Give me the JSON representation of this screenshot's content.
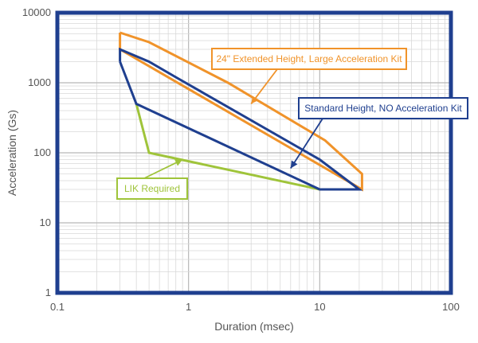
{
  "chart_data": {
    "type": "line",
    "xlabel": "Duration (msec)",
    "ylabel": "Acceleration (Gs)",
    "xscale": "log",
    "yscale": "log",
    "xlim": [
      0.1,
      100
    ],
    "ylim": [
      1,
      10000
    ],
    "grid": true,
    "x_ticks": [
      {
        "value": 0.1,
        "label": "0.1"
      },
      {
        "value": 1,
        "label": "1"
      },
      {
        "value": 10,
        "label": "10"
      },
      {
        "value": 100,
        "label": "100"
      }
    ],
    "y_ticks": [
      {
        "value": 1,
        "label": "1"
      },
      {
        "value": 10,
        "label": "10"
      },
      {
        "value": 100,
        "label": "100"
      },
      {
        "value": 1000,
        "label": "1000"
      },
      {
        "value": 10000,
        "label": "10000"
      }
    ],
    "series": [
      {
        "name": "24\" Extended Height, Large Acceleration Kit",
        "color": "#f0932a",
        "points": [
          [
            0.3,
            5200
          ],
          [
            0.5,
            3800
          ],
          [
            2.0,
            1000
          ],
          [
            11,
            150
          ],
          [
            21,
            50
          ],
          [
            21,
            30
          ],
          [
            0.3,
            3000
          ],
          [
            0.3,
            5200
          ]
        ]
      },
      {
        "name": "Standard Height, NO Acceleration Kit",
        "color": "#1f3f8f",
        "points": [
          [
            0.3,
            2000
          ],
          [
            0.3,
            3000
          ],
          [
            0.5,
            2000
          ],
          [
            0.8,
            1200
          ],
          [
            10,
            80
          ],
          [
            20,
            30
          ],
          [
            10,
            30
          ],
          [
            0.4,
            500
          ],
          [
            0.3,
            2000
          ]
        ]
      },
      {
        "name": "LIK Required",
        "color": "#9fc43a",
        "points": [
          [
            0.4,
            500
          ],
          [
            0.5,
            100
          ],
          [
            10,
            30
          ]
        ]
      }
    ],
    "annotations": [
      {
        "text": "24\" Extended Height, Large Acceleration Kit",
        "series": 0,
        "arrow_to": [
          3.0,
          500
        ]
      },
      {
        "text": "Standard Height, NO Acceleration Kit",
        "series": 1,
        "arrow_to": [
          6.0,
          60
        ]
      },
      {
        "text": "LIK Required",
        "series": 2,
        "arrow_to": [
          0.9,
          80
        ]
      }
    ]
  }
}
